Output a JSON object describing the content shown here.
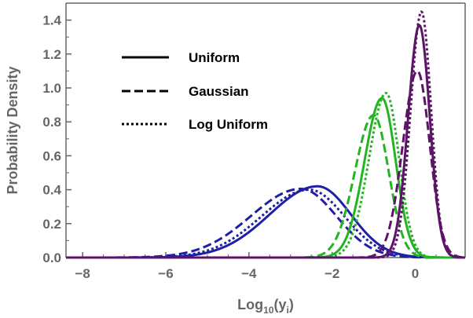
{
  "chart_data": {
    "type": "line",
    "title": "",
    "xlabel": "Log",
    "xlabel_sub": "10",
    "xlabel_tail": "(y",
    "xlabel_var_sub": "i",
    "xlabel_close": ")",
    "ylabel": "Probability Density",
    "xlim": [
      -8.4,
      1.2
    ],
    "ylim": [
      0,
      1.5
    ],
    "xticks": [
      -8,
      -6,
      -4,
      -2,
      0
    ],
    "xtick_labels": [
      "−8",
      "−6",
      "−4",
      "−2",
      "0"
    ],
    "yticks": [
      0.0,
      0.2,
      0.4,
      0.6,
      0.8,
      1.0,
      1.2,
      1.4
    ],
    "ytick_labels": [
      "0.0",
      "0.2",
      "0.4",
      "0.6",
      "0.8",
      "1.0",
      "1.2",
      "1.4"
    ],
    "legend_position": "top-left",
    "legend": [
      {
        "label": "Uniform",
        "style": "solid"
      },
      {
        "label": "Gaussian",
        "style": "dashed"
      },
      {
        "label": "Log Uniform",
        "style": "dotted"
      }
    ],
    "colors": {
      "blue": "#1f1fa8",
      "green": "#22b422",
      "purple": "#5c1466",
      "axis": "#666666"
    },
    "series": [
      {
        "group": "blue",
        "style": "solid",
        "color": "#1f1fa8",
        "peak_x": -2.35,
        "peak_y": 0.42,
        "sigma_left": 1.15,
        "sigma_right": 0.8,
        "x_start": -8.4,
        "x_end": 1.2
      },
      {
        "group": "blue",
        "style": "dashed",
        "color": "#1f1fa8",
        "peak_x": -2.75,
        "peak_y": 0.405,
        "sigma_left": 1.2,
        "sigma_right": 0.85,
        "x_start": -8.4,
        "x_end": 1.2
      },
      {
        "group": "blue",
        "style": "dotted",
        "color": "#1f1fa8",
        "peak_x": -2.55,
        "peak_y": 0.4,
        "sigma_left": 1.15,
        "sigma_right": 0.85,
        "x_start": -8.4,
        "x_end": 1.2
      },
      {
        "group": "green",
        "style": "solid",
        "color": "#22b422",
        "peak_x": -0.8,
        "peak_y": 0.94,
        "sigma_left": 0.42,
        "sigma_right": 0.33,
        "x_start": -8.4,
        "x_end": 1.2
      },
      {
        "group": "green",
        "style": "dashed",
        "color": "#22b422",
        "peak_x": -1.0,
        "peak_y": 0.84,
        "sigma_left": 0.45,
        "sigma_right": 0.36,
        "x_start": -8.4,
        "x_end": 1.2
      },
      {
        "group": "green",
        "style": "dotted",
        "color": "#22b422",
        "peak_x": -0.7,
        "peak_y": 0.97,
        "sigma_left": 0.41,
        "sigma_right": 0.31,
        "x_start": -8.4,
        "x_end": 1.2
      },
      {
        "group": "purple",
        "style": "solid",
        "color": "#5c1466",
        "peak_x": 0.1,
        "peak_y": 1.37,
        "sigma_left": 0.27,
        "sigma_right": 0.25,
        "x_start": -8.4,
        "x_end": 1.2
      },
      {
        "group": "purple",
        "style": "dashed",
        "color": "#5c1466",
        "peak_x": 0.05,
        "peak_y": 1.1,
        "sigma_left": 0.35,
        "sigma_right": 0.3,
        "x_start": -8.4,
        "x_end": 1.2
      },
      {
        "group": "purple",
        "style": "dotted",
        "color": "#5c1466",
        "peak_x": 0.15,
        "peak_y": 1.45,
        "sigma_left": 0.26,
        "sigma_right": 0.23,
        "x_start": -8.4,
        "x_end": 1.2
      }
    ]
  }
}
